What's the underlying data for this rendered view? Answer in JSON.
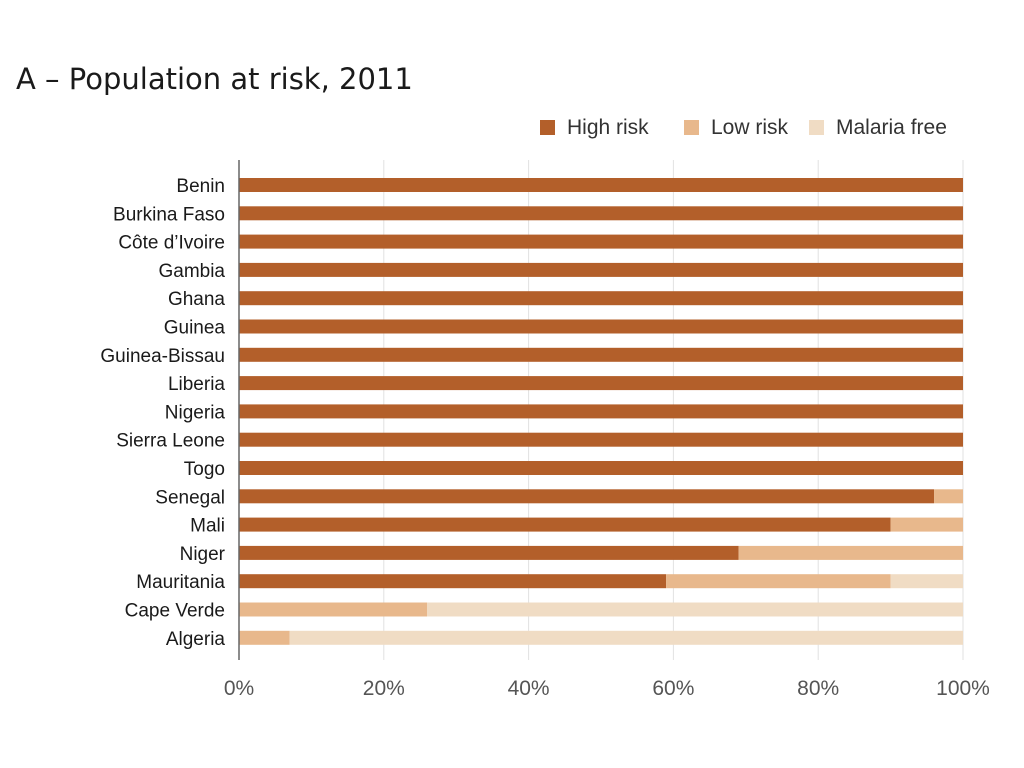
{
  "chart_data": {
    "type": "bar",
    "orientation": "horizontal",
    "stacked": true,
    "title": "A – Population at risk, 2011",
    "xlabel": "",
    "ylabel": "",
    "xlim": [
      0,
      100
    ],
    "grid": true,
    "legend_position": "top-right",
    "tick_labels": [
      "0%",
      "20%",
      "40%",
      "60%",
      "80%",
      "100%"
    ],
    "tick_values": [
      0,
      20,
      40,
      60,
      80,
      100
    ],
    "categories": [
      "Benin",
      "Burkina Faso",
      "Côte d’Ivoire",
      "Gambia",
      "Ghana",
      "Guinea",
      "Guinea-Bissau",
      "Liberia",
      "Nigeria",
      "Sierra Leone",
      "Togo",
      "Senegal",
      "Mali",
      "Niger",
      "Mauritania",
      "Cape Verde",
      "Algeria"
    ],
    "series": [
      {
        "name": "High risk",
        "color": "#b35f2a",
        "values": [
          100,
          100,
          100,
          100,
          100,
          100,
          100,
          100,
          100,
          100,
          100,
          96,
          90,
          69,
          59,
          0,
          0
        ]
      },
      {
        "name": "Low risk",
        "color": "#e8b88c",
        "values": [
          0,
          0,
          0,
          0,
          0,
          0,
          0,
          0,
          0,
          0,
          0,
          4,
          10,
          31,
          31,
          26,
          7
        ]
      },
      {
        "name": "Malaria free",
        "color": "#f0dcc4",
        "values": [
          0,
          0,
          0,
          0,
          0,
          0,
          0,
          0,
          0,
          0,
          0,
          0,
          0,
          0,
          10,
          74,
          93
        ]
      }
    ]
  }
}
